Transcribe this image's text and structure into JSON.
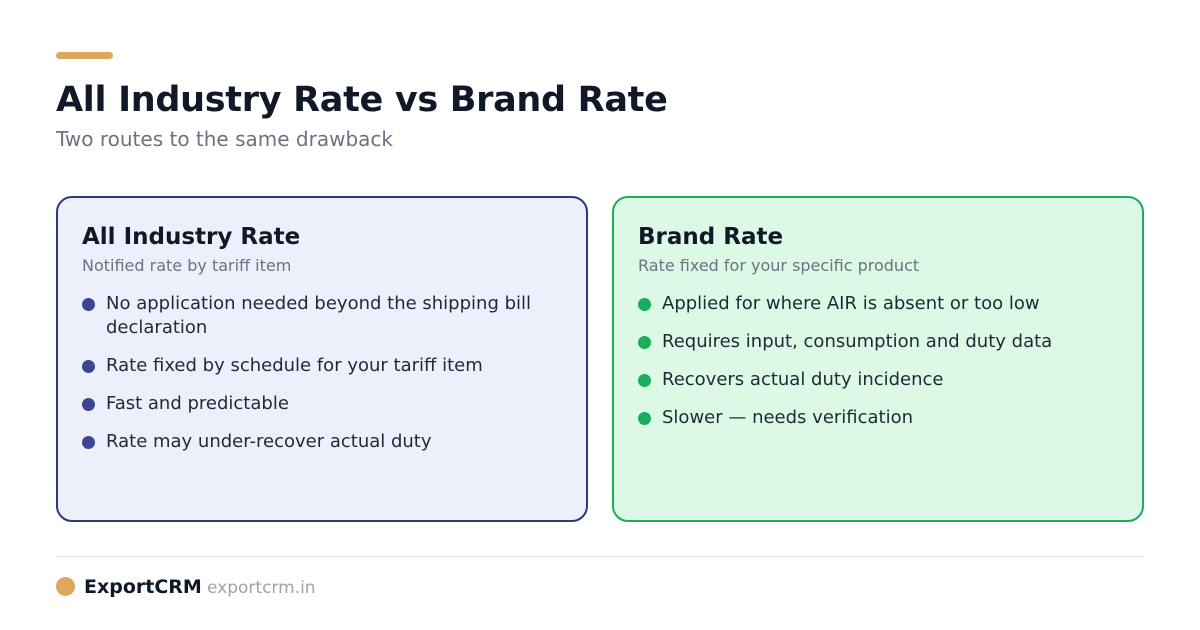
{
  "header": {
    "accent_color": "#dba85e",
    "title": "All Industry Rate vs Brand Rate",
    "subtitle": "Two routes to the same drawback"
  },
  "cards": [
    {
      "title": "All Industry Rate",
      "subtitle": "Notified rate by tariff item",
      "accent_color": "#2c3a7a",
      "background": "#edf0fb",
      "bullets": [
        "No application needed beyond the shipping bill declaration",
        "Rate fixed by schedule for your tariff item",
        "Fast and predictable",
        "Rate may under-recover actual duty"
      ]
    },
    {
      "title": "Brand Rate",
      "subtitle": "Rate fixed for your specific product",
      "accent_color": "#1aad5c",
      "background": "#dcf9e6",
      "bullets": [
        "Applied for where AIR is absent or too low",
        "Requires input, consumption and duty data",
        "Recovers actual duty incidence",
        "Slower — needs verification"
      ]
    }
  ],
  "footer": {
    "brand_name": "ExportCRM",
    "url": "exportcrm.in",
    "logo_icon": "circle-logo-icon"
  }
}
